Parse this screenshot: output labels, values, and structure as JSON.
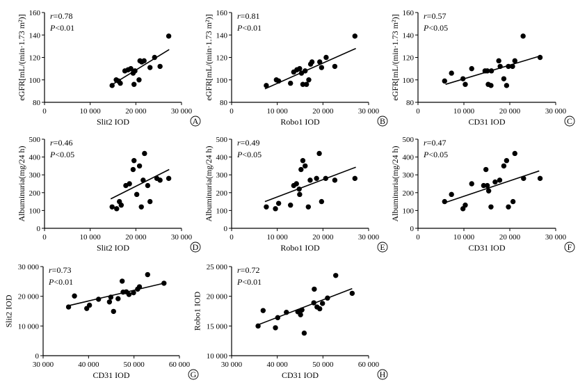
{
  "chart_data": [
    {
      "type": "scatter",
      "panel": "A",
      "xlabel": "Slit2 IOD",
      "ylabel": "eGFR[mL/(min·1.73 m²)]",
      "xlim": [
        0,
        30000
      ],
      "ylim": [
        80,
        160
      ],
      "xticks": [
        0,
        10000,
        20000,
        30000
      ],
      "xtick_labels": [
        "0",
        "10 000",
        "20 000",
        "30 000"
      ],
      "yticks": [
        80,
        100,
        120,
        140,
        160
      ],
      "ytick_labels": [
        "80",
        "100",
        "120",
        "140",
        "160"
      ],
      "stat_r": "=0.78",
      "stat_p": "<0.01",
      "fit": [
        [
          14500,
          95
        ],
        [
          27300,
          127
        ]
      ],
      "points": [
        [
          14800,
          95
        ],
        [
          15700,
          100
        ],
        [
          16200,
          99
        ],
        [
          16600,
          97
        ],
        [
          17600,
          108
        ],
        [
          18300,
          109
        ],
        [
          18900,
          110
        ],
        [
          19400,
          106
        ],
        [
          19800,
          108
        ],
        [
          19600,
          96
        ],
        [
          20700,
          100
        ],
        [
          20900,
          117
        ],
        [
          21300,
          116
        ],
        [
          21800,
          117
        ],
        [
          23100,
          111
        ],
        [
          24100,
          120
        ],
        [
          25300,
          112
        ],
        [
          27200,
          139
        ]
      ]
    },
    {
      "type": "scatter",
      "panel": "B",
      "xlabel": "Robo1 IOD",
      "ylabel": "eGFR[mL/(min·1.73 m²)]",
      "xlim": [
        0,
        30000
      ],
      "ylim": [
        80,
        160
      ],
      "xticks": [
        0,
        10000,
        20000,
        30000
      ],
      "xtick_labels": [
        "0",
        "10 000",
        "20 000",
        "30 000"
      ],
      "yticks": [
        80,
        100,
        120,
        140,
        160
      ],
      "ytick_labels": [
        "80",
        "100",
        "120",
        "140",
        "160"
      ],
      "stat_r": "=0.81",
      "stat_p": "<0.01",
      "fit": [
        [
          7300,
          92
        ],
        [
          27200,
          128
        ]
      ],
      "points": [
        [
          7600,
          95
        ],
        [
          9800,
          100
        ],
        [
          10300,
          99
        ],
        [
          12900,
          97
        ],
        [
          13600,
          107
        ],
        [
          14300,
          109
        ],
        [
          14900,
          110
        ],
        [
          15300,
          106
        ],
        [
          15600,
          96
        ],
        [
          16400,
          96
        ],
        [
          16100,
          108
        ],
        [
          16900,
          100
        ],
        [
          17600,
          116
        ],
        [
          17300,
          114
        ],
        [
          19300,
          116
        ],
        [
          20700,
          120
        ],
        [
          19700,
          111
        ],
        [
          22600,
          112
        ],
        [
          27000,
          139
        ]
      ]
    },
    {
      "type": "scatter",
      "panel": "C",
      "xlabel": "CD31 IOD",
      "ylabel": "eGFR[mL/(min·1.73 m²)]",
      "xlim": [
        0,
        30000
      ],
      "ylim": [
        80,
        160
      ],
      "xticks": [
        0,
        10000,
        20000,
        30000
      ],
      "xtick_labels": [
        "0",
        "10 000",
        "20 000",
        "30 000"
      ],
      "yticks": [
        80,
        100,
        120,
        140,
        160
      ],
      "ytick_labels": [
        "80",
        "100",
        "120",
        "140",
        "160"
      ],
      "stat_r": "=0.57",
      "stat_p": "<0.05",
      "fit": [
        [
          6000,
          96
        ],
        [
          26400,
          121
        ]
      ],
      "points": [
        [
          5800,
          99
        ],
        [
          7300,
          106
        ],
        [
          9800,
          101
        ],
        [
          10300,
          96
        ],
        [
          11700,
          110
        ],
        [
          14600,
          108
        ],
        [
          15100,
          108
        ],
        [
          15300,
          96
        ],
        [
          15900,
          95
        ],
        [
          16000,
          108
        ],
        [
          17600,
          117
        ],
        [
          17900,
          112
        ],
        [
          18700,
          101
        ],
        [
          19300,
          95
        ],
        [
          19700,
          112
        ],
        [
          20600,
          112
        ],
        [
          21100,
          117
        ],
        [
          22900,
          139
        ],
        [
          26600,
          120
        ]
      ]
    },
    {
      "type": "scatter",
      "panel": "D",
      "xlabel": "Slit2 IOD",
      "ylabel": "Albuminuria(mg/24 h)",
      "xlim": [
        0,
        30000
      ],
      "ylim": [
        0,
        500
      ],
      "xticks": [
        0,
        10000,
        20000,
        30000
      ],
      "xtick_labels": [
        "0",
        "10 000",
        "20 000",
        "30 000"
      ],
      "yticks": [
        0,
        100,
        200,
        300,
        400,
        500
      ],
      "ytick_labels": [
        "0",
        "100",
        "200",
        "300",
        "400",
        "500"
      ],
      "stat_r": "=0.46",
      "stat_p": "<0.05",
      "fit": [
        [
          14500,
          165
        ],
        [
          27300,
          330
        ]
      ],
      "points": [
        [
          14800,
          120
        ],
        [
          15800,
          110
        ],
        [
          16400,
          150
        ],
        [
          16800,
          130
        ],
        [
          17800,
          240
        ],
        [
          18600,
          250
        ],
        [
          19400,
          330
        ],
        [
          19600,
          380
        ],
        [
          20200,
          190
        ],
        [
          20800,
          350
        ],
        [
          21200,
          120
        ],
        [
          21600,
          270
        ],
        [
          21900,
          420
        ],
        [
          22600,
          240
        ],
        [
          23100,
          150
        ],
        [
          24600,
          280
        ],
        [
          25300,
          270
        ],
        [
          27200,
          280
        ]
      ]
    },
    {
      "type": "scatter",
      "panel": "E",
      "xlabel": "Robo1 IOD",
      "ylabel": "Albuminuria(mg/24 h)",
      "xlim": [
        0,
        30000
      ],
      "ylim": [
        0,
        500
      ],
      "xticks": [
        0,
        10000,
        20000,
        30000
      ],
      "xtick_labels": [
        "0",
        "10 000",
        "20 000",
        "30 000"
      ],
      "yticks": [
        0,
        100,
        200,
        300,
        400,
        500
      ],
      "ytick_labels": [
        "0",
        "100",
        "200",
        "300",
        "400",
        "500"
      ],
      "stat_r": "=0.49",
      "stat_p": "<0.05",
      "fit": [
        [
          7300,
          150
        ],
        [
          27200,
          343
        ]
      ],
      "points": [
        [
          7600,
          120
        ],
        [
          9600,
          110
        ],
        [
          10300,
          140
        ],
        [
          12900,
          130
        ],
        [
          13600,
          240
        ],
        [
          14200,
          250
        ],
        [
          14900,
          190
        ],
        [
          15200,
          330
        ],
        [
          15600,
          380
        ],
        [
          16100,
          350
        ],
        [
          16800,
          120
        ],
        [
          17200,
          270
        ],
        [
          18600,
          280
        ],
        [
          19200,
          420
        ],
        [
          19700,
          150
        ],
        [
          20600,
          280
        ],
        [
          22600,
          270
        ],
        [
          27000,
          280
        ],
        [
          14800,
          220
        ]
      ]
    },
    {
      "type": "scatter",
      "panel": "F",
      "xlabel": "CD31 IOD",
      "ylabel": "Albuminuria(mg/24 h)",
      "xlim": [
        0,
        30000
      ],
      "ylim": [
        0,
        500
      ],
      "xticks": [
        0,
        10000,
        20000,
        30000
      ],
      "xtick_labels": [
        "0",
        "10 000",
        "20 000",
        "30 000"
      ],
      "yticks": [
        0,
        100,
        200,
        300,
        400,
        500
      ],
      "ytick_labels": [
        "0",
        "100",
        "200",
        "300",
        "400",
        "500"
      ],
      "stat_r": "=0.47",
      "stat_p": "<0.05",
      "fit": [
        [
          6000,
          145
        ],
        [
          26400,
          322
        ]
      ],
      "points": [
        [
          5800,
          150
        ],
        [
          7300,
          190
        ],
        [
          9800,
          110
        ],
        [
          10300,
          130
        ],
        [
          11700,
          250
        ],
        [
          14300,
          240
        ],
        [
          14800,
          330
        ],
        [
          15100,
          240
        ],
        [
          15400,
          210
        ],
        [
          15900,
          120
        ],
        [
          16800,
          260
        ],
        [
          17800,
          270
        ],
        [
          18700,
          350
        ],
        [
          19300,
          380
        ],
        [
          19700,
          120
        ],
        [
          20700,
          150
        ],
        [
          21100,
          420
        ],
        [
          23000,
          280
        ],
        [
          26600,
          280
        ]
      ]
    },
    {
      "type": "scatter",
      "panel": "G",
      "xlabel": "CD31 IOD",
      "ylabel": "Slit2 IOD",
      "xlim": [
        30000,
        60000
      ],
      "ylim": [
        0,
        30000
      ],
      "xticks": [
        30000,
        40000,
        50000,
        60000
      ],
      "xtick_labels": [
        "30 000",
        "40 000",
        "50 000",
        "60 000"
      ],
      "yticks": [
        0,
        10000,
        20000,
        30000
      ],
      "ytick_labels": [
        "0",
        "10 000",
        "20 000",
        "30 000"
      ],
      "stat_r": "=0.73",
      "stat_p": "<0.01",
      "fit": [
        [
          35500,
          16800
        ],
        [
          56600,
          24400
        ]
      ],
      "points": [
        [
          35600,
          16400
        ],
        [
          36900,
          20100
        ],
        [
          39600,
          15900
        ],
        [
          40200,
          17000
        ],
        [
          42200,
          19000
        ],
        [
          44600,
          18100
        ],
        [
          44900,
          19700
        ],
        [
          45500,
          14900
        ],
        [
          46500,
          19200
        ],
        [
          47400,
          25100
        ],
        [
          47600,
          21400
        ],
        [
          48300,
          21500
        ],
        [
          48900,
          20600
        ],
        [
          49900,
          21200
        ],
        [
          50800,
          22400
        ],
        [
          51200,
          23200
        ],
        [
          53000,
          27300
        ],
        [
          56600,
          24400
        ]
      ]
    },
    {
      "type": "scatter",
      "panel": "H",
      "xlabel": "CD31 IOD",
      "ylabel": "Robo1 IOD",
      "xlim": [
        30000,
        60000
      ],
      "ylim": [
        10000,
        25000
      ],
      "xticks": [
        30000,
        40000,
        50000,
        60000
      ],
      "xtick_labels": [
        "30 000",
        "40 000",
        "50 000",
        "60 000"
      ],
      "yticks": [
        10000,
        15000,
        20000,
        25000
      ],
      "ytick_labels": [
        "10 000",
        "15 000",
        "20 000",
        "25 000"
      ],
      "stat_r": "=0.72",
      "stat_p": "<0.01",
      "fit": [
        [
          35800,
          15200
        ],
        [
          56400,
          21300
        ]
      ],
      "points": [
        [
          35800,
          15000
        ],
        [
          36900,
          17600
        ],
        [
          39600,
          14700
        ],
        [
          40100,
          16400
        ],
        [
          42000,
          17300
        ],
        [
          44500,
          17400
        ],
        [
          45100,
          16900
        ],
        [
          45400,
          17700
        ],
        [
          45900,
          13800
        ],
        [
          48100,
          21200
        ],
        [
          48000,
          18900
        ],
        [
          48700,
          18200
        ],
        [
          49300,
          17900
        ],
        [
          49900,
          18800
        ],
        [
          51000,
          19700
        ],
        [
          52800,
          23500
        ],
        [
          56400,
          20500
        ]
      ]
    }
  ]
}
